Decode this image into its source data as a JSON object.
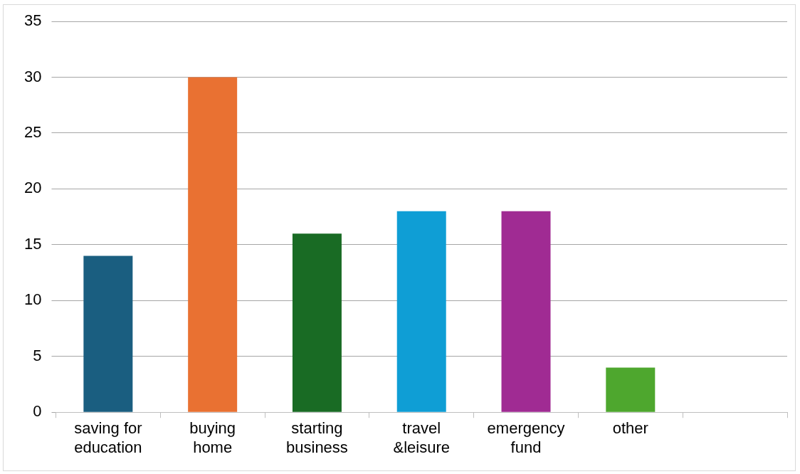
{
  "chart_data": {
    "type": "bar",
    "categories": [
      "saving for education",
      "buying home",
      "starting business",
      "travel &leisure",
      "emergency fund",
      "other",
      null
    ],
    "values": [
      14,
      30,
      16,
      18,
      18,
      4,
      null
    ],
    "colors": [
      "#1a5e80",
      "#e97132",
      "#196b24",
      "#0f9ed5",
      "#a02b93",
      "#4ea72e",
      "#888888"
    ],
    "ylim": [
      0,
      35
    ],
    "yticks": [
      0,
      5,
      10,
      15,
      20,
      25,
      30,
      35
    ],
    "grid": "y",
    "legend": false
  }
}
